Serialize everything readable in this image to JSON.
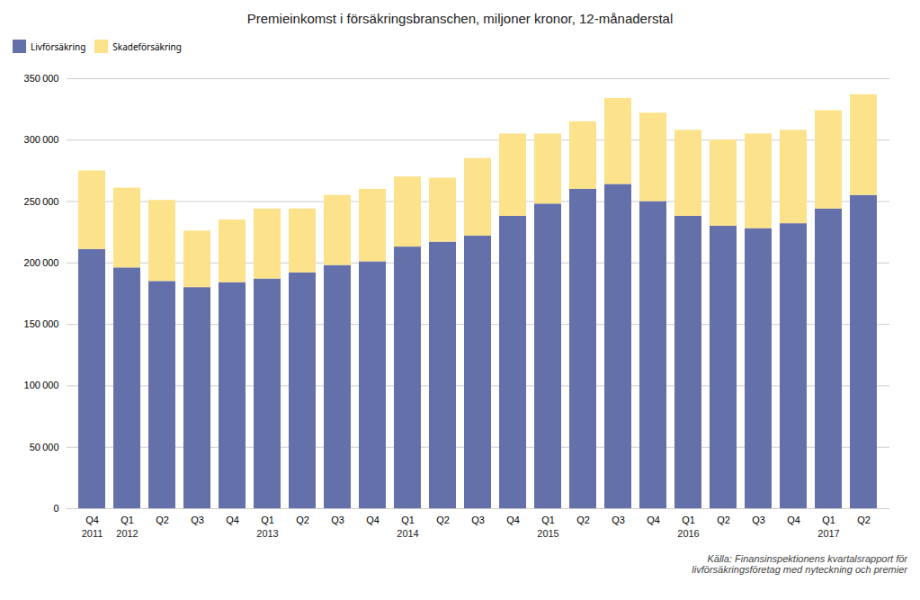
{
  "chart_data": {
    "type": "bar",
    "title": "Premieinkomst i försäkringsbranschen,  miljoner kronor, 12-månaderstal",
    "stacked": true,
    "grid": true,
    "legend": "top",
    "categories": [
      "Q4",
      "Q1",
      "Q2",
      "Q3",
      "Q4",
      "Q1",
      "Q2",
      "Q3",
      "Q4",
      "Q1",
      "Q2",
      "Q3",
      "Q4",
      "Q1",
      "Q2",
      "Q3",
      "Q4",
      "Q1",
      "Q2",
      "Q3",
      "Q4",
      "Q1",
      "Q2"
    ],
    "year_labels": [
      {
        "label": "2011",
        "pos": 0
      },
      {
        "label": "2012",
        "pos": 1
      },
      {
        "label": "2013",
        "pos": 5
      },
      {
        "label": "2014",
        "pos": 9
      },
      {
        "label": "2015",
        "pos": 13
      },
      {
        "label": "2016",
        "pos": 17
      },
      {
        "label": "2017",
        "pos": 21
      }
    ],
    "series": [
      {
        "name": "Livförsäkring",
        "color": "#6470aa",
        "values": [
          211000,
          196000,
          185000,
          180000,
          184000,
          187000,
          192000,
          198000,
          201000,
          213000,
          217000,
          222000,
          238000,
          248000,
          260000,
          264000,
          250000,
          238000,
          230000,
          228000,
          232000,
          244000,
          255000
        ]
      },
      {
        "name": "Skadeförsäkring",
        "color": "#fce28a",
        "values": [
          64000,
          65000,
          66000,
          46000,
          51000,
          57000,
          52000,
          57000,
          59000,
          57000,
          52000,
          63000,
          67000,
          57000,
          55000,
          70000,
          72000,
          70000,
          70000,
          77000,
          76000,
          80000,
          82000
        ]
      }
    ],
    "ylim": [
      0,
      350000
    ],
    "yticks": [
      0,
      {
        "value": 50000,
        "label": "50 000"
      },
      {
        "value": 100000,
        "label": "100 000"
      },
      {
        "value": 150000,
        "label": "150 000"
      },
      {
        "value": 200000,
        "label": "200 000"
      },
      {
        "value": 250000,
        "label": "250 000"
      },
      {
        "value": 300000,
        "label": "300 000"
      },
      {
        "value": 350000,
        "label": "350 000"
      }
    ],
    "caption": "Källa: Finansinspektionens kvartalsrapport för\nlivförsäkringsföretag med nyteckning och premier"
  }
}
